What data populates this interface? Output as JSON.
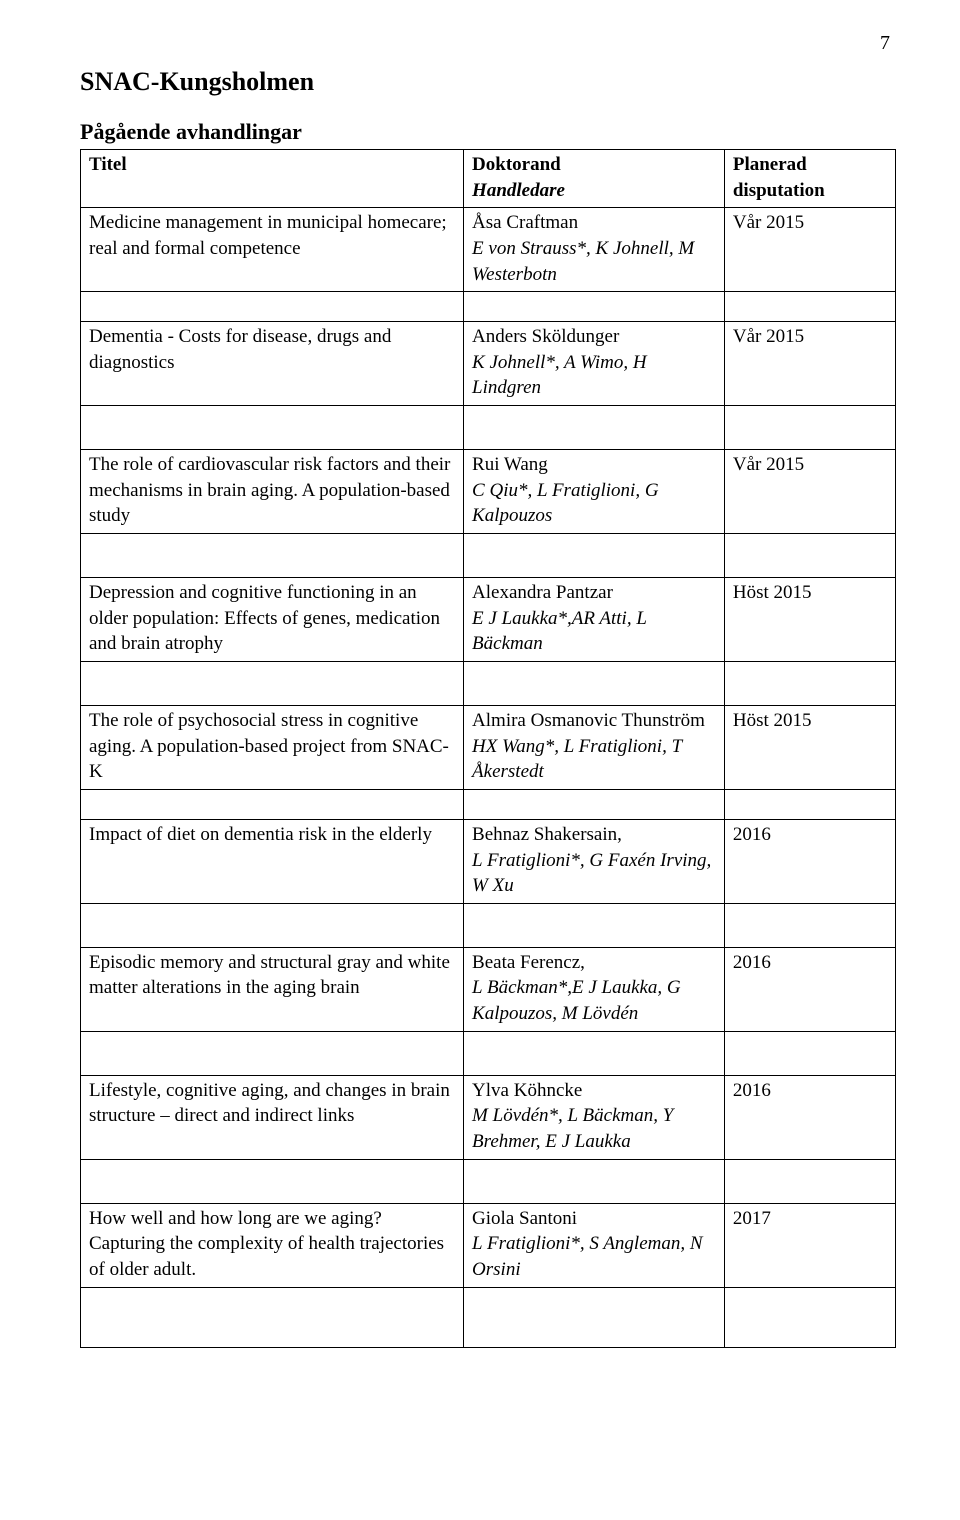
{
  "page_number": "7",
  "main_heading": "SNAC-Kungsholmen",
  "sub_heading": "Pågående avhandlingar",
  "headers": {
    "titel": "Titel",
    "doktorand": "Doktorand",
    "handledare": "Handledare",
    "planerad": "Planerad",
    "disputation": "disputation"
  },
  "rows": [
    {
      "title": "Medicine management in municipal homecare; real and formal competence",
      "doktorand": "Åsa Craftman",
      "handledare": "E von Strauss*, K Johnell, M Westerbotn",
      "disputation": "Vår 2015"
    },
    {
      "title": "Dementia - Costs for disease, drugs and diagnostics",
      "doktorand": "Anders Sköldunger",
      "handledare": "K Johnell*, A Wimo, H Lindgren",
      "disputation": "Vår 2015"
    },
    {
      "title": "The role of cardiovascular risk factors and their mechanisms in brain aging. A population-based study",
      "doktorand": "Rui Wang",
      "handledare": "C Qiu*, L Fratiglioni, G Kalpouzos",
      "disputation": "Vår 2015"
    },
    {
      "title": "Depression and cognitive functioning in an older population: Effects of genes, medication and brain atrophy",
      "doktorand": "Alexandra Pantzar",
      "handledare": "E J Laukka*,AR Atti, L Bäckman",
      "disputation": "Höst 2015"
    },
    {
      "title": "The role of psychosocial stress in cognitive aging. A population-based project from SNAC-K",
      "doktorand": "Almira Osmanovic Thunström",
      "handledare": "HX Wang*, L Fratiglioni, T Åkerstedt",
      "disputation": "Höst 2015"
    },
    {
      "title": "Impact of diet on dementia risk in the elderly",
      "doktorand": "Behnaz Shakersain,",
      "handledare": "L Fratiglioni*, G Faxén Irving, W Xu",
      "disputation": "2016"
    },
    {
      "title": "Episodic memory and structural gray and white matter alterations in the aging brain",
      "doktorand": "Beata Ferencz,",
      "handledare": "L Bäckman*,E J Laukka, G Kalpouzos, M Lövdén",
      "disputation": "2016"
    },
    {
      "title": "Lifestyle, cognitive aging, and changes in brain structure – direct and indirect links",
      "doktorand": "Ylva Köhncke",
      "handledare": "M Lövdén*, L Bäckman, Y Brehmer, E J Laukka",
      "disputation": "2016"
    },
    {
      "title": "How well and how long are we aging? Capturing the complexity of health trajectories of older adult.",
      "doktorand": "Giola Santoni",
      "handledare": "L Fratiglioni*, S Angleman, N Orsini",
      "disputation": "2017"
    }
  ]
}
